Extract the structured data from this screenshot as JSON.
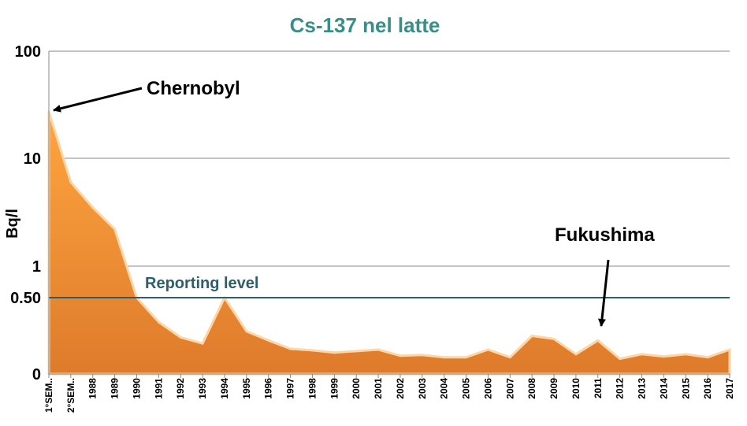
{
  "chart_data": {
    "type": "area",
    "title": "Cs-137 nel latte",
    "ylabel": "Bq/l",
    "xlabel": "",
    "y_scale": "log-with-zero",
    "y_ticks": [
      "100",
      "10",
      "1",
      "0.50",
      "0"
    ],
    "grid": true,
    "legend": "none",
    "categories": [
      "1°SEM..",
      "2°SEM..",
      "1988",
      "1989",
      "1990",
      "1991",
      "1992",
      "1993",
      "1994",
      "1995",
      "1996",
      "1997",
      "1998",
      "1999",
      "2000",
      "2001",
      "2002",
      "2003",
      "2004",
      "2005",
      "2006",
      "2007",
      "2008",
      "2009",
      "2010",
      "2011",
      "2012",
      "2013",
      "2014",
      "2015",
      "2016",
      "2017"
    ],
    "values": [
      27,
      6,
      3.5,
      2.2,
      0.5,
      0.34,
      0.24,
      0.2,
      0.5,
      0.28,
      0.22,
      0.165,
      0.155,
      0.14,
      0.15,
      0.16,
      0.12,
      0.125,
      0.11,
      0.11,
      0.16,
      0.11,
      0.25,
      0.23,
      0.13,
      0.22,
      0.1,
      0.13,
      0.115,
      0.13,
      0.11,
      0.16
    ],
    "reference_line": {
      "value": 0.5,
      "label": "Reporting level"
    },
    "annotations": [
      {
        "text": "Chernobyl",
        "points_to": "1°SEM.."
      },
      {
        "text": "Fukushima",
        "points_to": "2011"
      }
    ],
    "colors": {
      "area_top": "#FFA53F",
      "area_bottom": "#DE7B2C",
      "edge": "#FCD6A8",
      "reference": "#2E5F68",
      "title": "#3A8E88",
      "grid": "#8A8A8A"
    }
  }
}
